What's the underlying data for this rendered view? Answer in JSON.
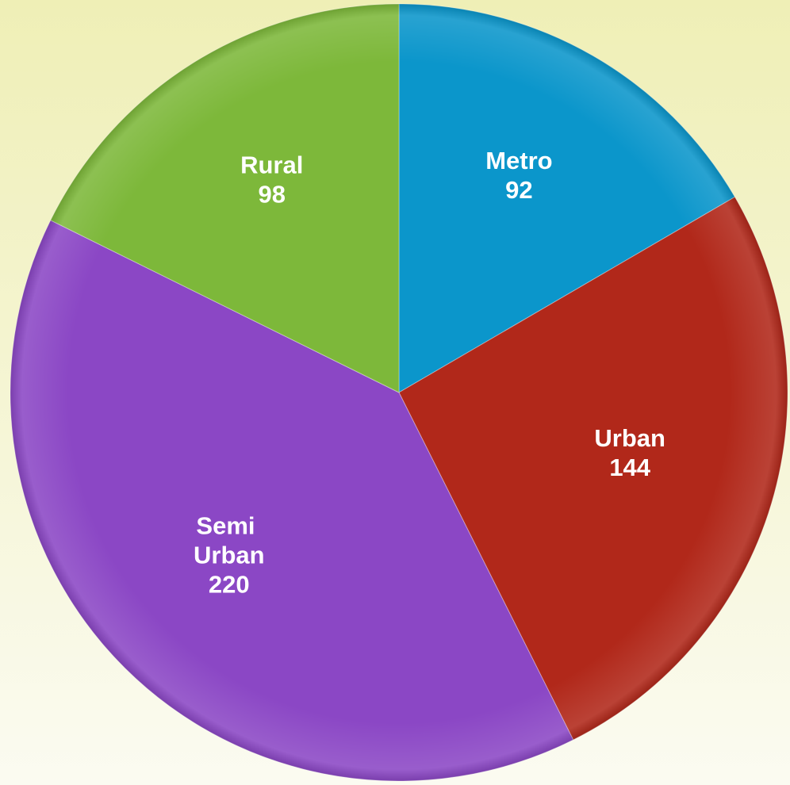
{
  "chart_data": {
    "type": "pie",
    "categories": [
      "Metro",
      "Urban",
      "Semi Urban",
      "Rural"
    ],
    "values": [
      92,
      144,
      220,
      98
    ],
    "colors": [
      "#0b96cb",
      "#b1281a",
      "#8b47c5",
      "#7db83a"
    ]
  }
}
